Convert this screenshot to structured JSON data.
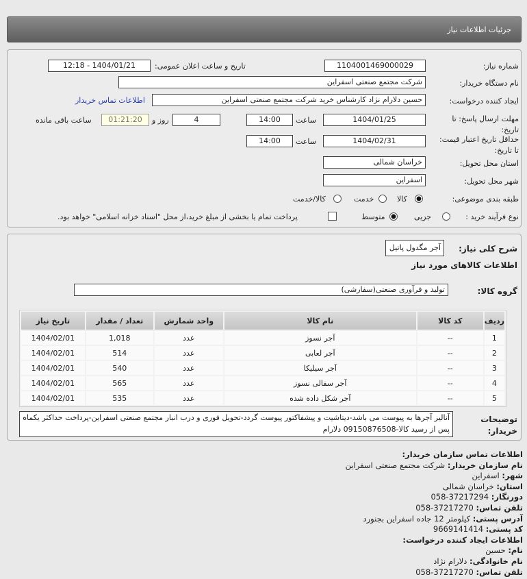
{
  "header": {
    "title": "جزئیات اطلاعات نیاز"
  },
  "form": {
    "need_number_label": "شماره نیاز:",
    "need_number": "1104001469000029",
    "announce_label": "تاریخ و ساعت اعلان عمومی:",
    "announce_value": "1404/01/21 - 12:18",
    "buyer_org_label": "نام دستگاه خریدار:",
    "buyer_org": "شرکت مجتمع صنعتی اسفراین",
    "creator_label": "ایجاد کننده درخواست:",
    "creator": "حسین دلارام نژاد کارشناس خرید شرکت مجتمع صنعتی اسفراین",
    "contact_link": "اطلاعات تماس خریدار",
    "deadline_label": "مهلت ارسال پاسخ: تا تاریخ:",
    "deadline_date": "1404/01/25",
    "time_label": "ساعت",
    "deadline_time": "14:00",
    "days": "4",
    "days_label": "روز و",
    "remaining": "01:21:20",
    "remaining_label": "ساعت باقی مانده",
    "validity_label": "حداقل تاریخ اعتبار قیمت: تا تاریخ:",
    "validity_date": "1404/02/31",
    "validity_time": "14:00",
    "province_label": "استان محل تحویل:",
    "province": "خراسان شمالی",
    "city_label": "شهر محل تحویل:",
    "city": "اسفراین",
    "category_label": "طبقه بندی موضوعی:",
    "category_options": [
      "کالا",
      "خدمت",
      "کالا/خدمت"
    ],
    "category_selected": "کالا",
    "process_label": "نوع فرآیند خرید :",
    "process_options": [
      "جزیی",
      "متوسط"
    ],
    "process_selected": "متوسط",
    "payment_note": "پرداخت تمام یا بخشی از مبلغ خرید،از محل \"اسناد خزانه اسلامی\" خواهد بود."
  },
  "goods": {
    "summary_label": "شرح کلی نیاز:",
    "summary": "آجر مگدول پاتیل",
    "section_title": "اطلاعات کالاهای مورد نیاز",
    "group_label": "گروه کالا:",
    "group": "تولید و فرآوری صنعتی(سفارشی)",
    "columns": [
      "ردیف",
      "کد کالا",
      "نام کالا",
      "واحد شمارش",
      "تعداد / مقدار",
      "تاریخ نیاز"
    ],
    "rows": [
      [
        "1",
        "--",
        "آجر نسوز",
        "عدد",
        "1,018",
        "1404/02/01"
      ],
      [
        "2",
        "--",
        "آجر لعابی",
        "عدد",
        "514",
        "1404/02/01"
      ],
      [
        "3",
        "--",
        "آجر سیلیکا",
        "عدد",
        "540",
        "1404/02/01"
      ],
      [
        "4",
        "--",
        "آجر سفالی نسوز",
        "عدد",
        "565",
        "1404/02/01"
      ],
      [
        "5",
        "--",
        "آجر شکل داده شده",
        "عدد",
        "535",
        "1404/02/01"
      ]
    ],
    "notes_label": "توضیحات خریدار:",
    "notes": "آنالیز آجرها به پیوست می باشد-دیتاشیت و پیشفاکتور پیوست گردد-تحویل فوری و درب انبار مجتمع صنعتی اسفراین-پرداخت حداکثر یکماه پس از رسید کالا-09150876508 دلارام"
  },
  "contact": {
    "title": "اطلاعات تماس سازمان خریدار:",
    "org_label": "نام سازمان خریدار:",
    "org": "شرکت مجتمع صنعتی اسفراین",
    "city_label": "شهر:",
    "city": "اسفراین",
    "province_label": "استان:",
    "province": "خراسان شمالی",
    "fax_label": "دورنگار:",
    "fax": "058-37217294",
    "phone_label": "تلفن تماس:",
    "phone": "058-37217270",
    "address_label": "آدرس پستی:",
    "address": "کیلومتر 12 جاده اسفراین بجنورد",
    "postal_label": "کد پستی:",
    "postal": "9669141414",
    "creator_title": "اطلاعات ایجاد کننده درخواست:",
    "name_label": "نام:",
    "name": "حسین",
    "family_label": "نام خانوادگی:",
    "family": "دلارام نژاد",
    "creator_phone_label": "تلفن تماس:",
    "creator_phone": "058-37217270"
  }
}
